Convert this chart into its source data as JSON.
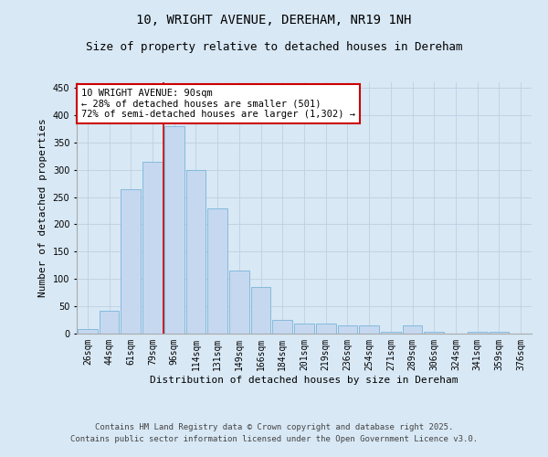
{
  "title_line1": "10, WRIGHT AVENUE, DEREHAM, NR19 1NH",
  "title_line2": "Size of property relative to detached houses in Dereham",
  "xlabel": "Distribution of detached houses by size in Dereham",
  "ylabel": "Number of detached properties",
  "categories": [
    "26sqm",
    "44sqm",
    "61sqm",
    "79sqm",
    "96sqm",
    "114sqm",
    "131sqm",
    "149sqm",
    "166sqm",
    "184sqm",
    "201sqm",
    "219sqm",
    "236sqm",
    "254sqm",
    "271sqm",
    "289sqm",
    "306sqm",
    "324sqm",
    "341sqm",
    "359sqm",
    "376sqm"
  ],
  "values": [
    8,
    42,
    265,
    315,
    380,
    300,
    230,
    115,
    85,
    25,
    18,
    18,
    15,
    15,
    3,
    15,
    3,
    0,
    3,
    3,
    0
  ],
  "bar_color": "#c5d8f0",
  "bar_edge_color": "#7ab4d8",
  "vline_x_index": 3.5,
  "vline_color": "#cc0000",
  "annotation_text": "10 WRIGHT AVENUE: 90sqm\n← 28% of detached houses are smaller (501)\n72% of semi-detached houses are larger (1,302) →",
  "annotation_box_color": "#ffffff",
  "annotation_box_edge": "#cc0000",
  "ylim": [
    0,
    460
  ],
  "yticks": [
    0,
    50,
    100,
    150,
    200,
    250,
    300,
    350,
    400,
    450
  ],
  "grid_color": "#c0d0e0",
  "background_color": "#d8e8f5",
  "plot_bg_color": "#d8e8f5",
  "footer_line1": "Contains HM Land Registry data © Crown copyright and database right 2025.",
  "footer_line2": "Contains public sector information licensed under the Open Government Licence v3.0.",
  "title_fontsize": 10,
  "subtitle_fontsize": 9,
  "axis_label_fontsize": 8,
  "tick_fontsize": 7,
  "annotation_fontsize": 7.5,
  "footer_fontsize": 6.5
}
